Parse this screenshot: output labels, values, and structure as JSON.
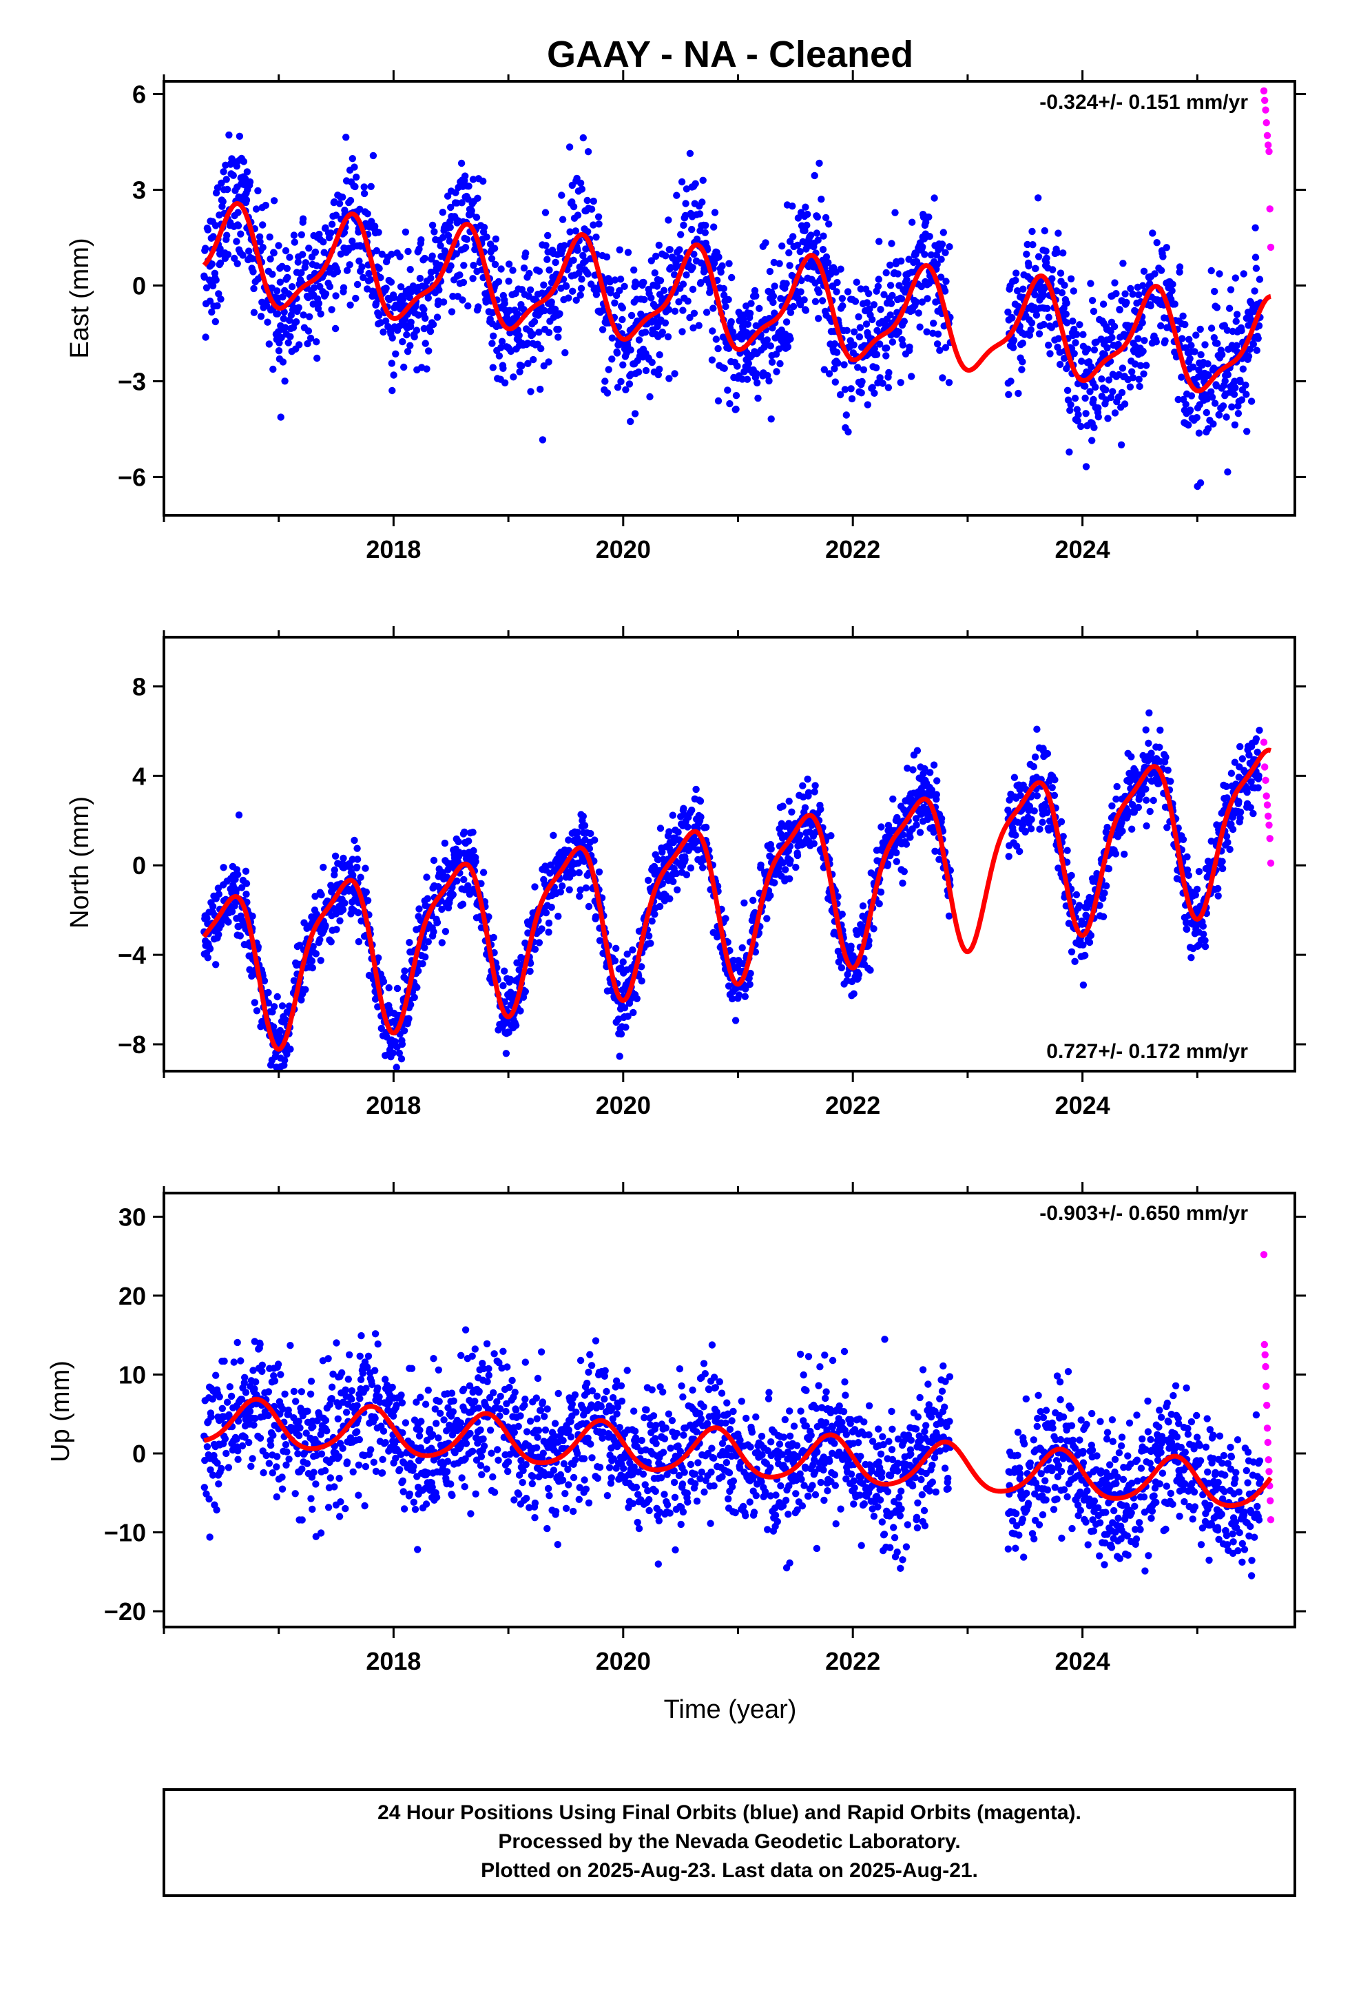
{
  "colors": {
    "final_orbits": "#0000ff",
    "rapid_orbits": "#ff00ff",
    "fit_curve": "#ff0000",
    "frame": "#000000"
  },
  "chart_data": {
    "type": "scatter",
    "title": "GAAY  - NA - Cleaned",
    "xlabel": "Time (year)",
    "xlim": [
      2016.0,
      2025.85
    ],
    "xticks": [
      2018,
      2020,
      2022,
      2024
    ],
    "panels": [
      {
        "key": "east",
        "ylabel": "East (mm)",
        "ylim": [
          -7.2,
          6.4
        ],
        "yticks": [
          -6,
          -3,
          0,
          3,
          6
        ],
        "ytick_labels": [
          "−6",
          "−3",
          "0",
          "3",
          "6"
        ],
        "rate": "-0.324+/- 0.151 mm/yr",
        "rate_position": "top-right",
        "trend": -0.324,
        "offset": 0.9,
        "annual_amp": 1.4,
        "annual_phase": 0.35,
        "semi_amp": 0.45,
        "semi_phase": 0.05,
        "noise": 1.05,
        "rapid_values": [
          6.1,
          5.8,
          5.5,
          5.1,
          4.7,
          4.4,
          4.2,
          2.4,
          1.2
        ]
      },
      {
        "key": "north",
        "ylabel": "North (mm)",
        "ylim": [
          -9.2,
          10.2
        ],
        "yticks": [
          -8,
          -4,
          0,
          4,
          8
        ],
        "ytick_labels": [
          "−8",
          "−4",
          "0",
          "4",
          "8"
        ],
        "rate": "0.727+/- 0.172 mm/yr",
        "rate_position": "bottom-right",
        "trend": 0.727,
        "offset": -4.6,
        "annual_amp": 3.3,
        "annual_phase": 0.28,
        "semi_amp": 0.9,
        "semi_phase": 0.1,
        "noise": 0.85,
        "rapid_values": [
          5.5,
          4.4,
          3.8,
          3.1,
          2.7,
          2.2,
          1.8,
          1.2,
          0.1
        ]
      },
      {
        "key": "up",
        "ylabel": "Up (mm)",
        "ylim": [
          -22.0,
          33.0
        ],
        "yticks": [
          -20,
          -10,
          0,
          10,
          20,
          30
        ],
        "ytick_labels": [
          "−20",
          "−10",
          "0",
          "10",
          "20",
          "30"
        ],
        "rate": "-0.903+/- 0.650 mm/yr",
        "rate_position": "top-right",
        "trend": -0.903,
        "offset": 4.0,
        "annual_amp": 2.9,
        "annual_phase": 0.55,
        "semi_amp": 0.4,
        "semi_phase": 0.2,
        "noise": 4.2,
        "rapid_values": [
          25.2,
          13.8,
          12.5,
          11.0,
          8.5,
          6.1,
          3.2,
          1.4,
          -0.8,
          -2.3,
          -4.1,
          -6.0,
          -8.4
        ]
      }
    ],
    "data_gap": [
      2022.85,
      2023.35
    ],
    "series": [
      {
        "name": "Final Orbits",
        "color": "#0000ff",
        "start": 2016.35,
        "end": 2025.55
      },
      {
        "name": "Rapid Orbits",
        "color": "#ff00ff",
        "start": 2025.58,
        "end": 2025.64
      }
    ],
    "grid": false
  },
  "footer": {
    "line1": "24 Hour Positions Using Final Orbits (blue) and Rapid Orbits (magenta).",
    "line2": "Processed by the Nevada Geodetic Laboratory.",
    "line3": "Plotted on 2025-Aug-23. Last data on 2025-Aug-21."
  }
}
